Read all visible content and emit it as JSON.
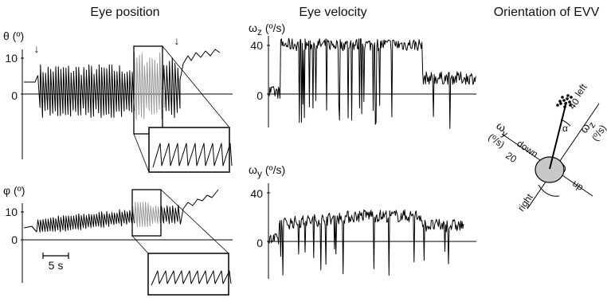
{
  "titles": {
    "eye_position": "Eye position",
    "eye_velocity": "Eye velocity",
    "orientation": "Orientation of EVV"
  },
  "panel_theta": {
    "label": "θ (º)",
    "ticks": [
      "10",
      "0"
    ],
    "markers": [
      "↓",
      "↓"
    ]
  },
  "panel_phi": {
    "label": "φ (º)",
    "ticks": [
      "10",
      "0"
    ],
    "scalebar": "5 s"
  },
  "panel_wz": {
    "label": "ω",
    "sub": "z",
    "unit": " (º/s)",
    "ticks": [
      "40",
      "0"
    ]
  },
  "panel_wy": {
    "label": "ω",
    "sub": "y",
    "unit": " (º/s)",
    "ticks": [
      "40",
      "0"
    ]
  },
  "orientation": {
    "left": "left",
    "right": "right",
    "up": "up",
    "down": "down",
    "tick40": "40",
    "tick20": "20",
    "alpha": "α",
    "wz_axis": "ω",
    "wz_sub": "z",
    "wz_unit": "(º/s)",
    "wy_axis": "ω",
    "wy_sub": "y",
    "wy_unit": "(º/s)"
  },
  "colors": {
    "trace": "#000000",
    "highlight": "#9a9a9a",
    "head": "#c8c8c8"
  }
}
